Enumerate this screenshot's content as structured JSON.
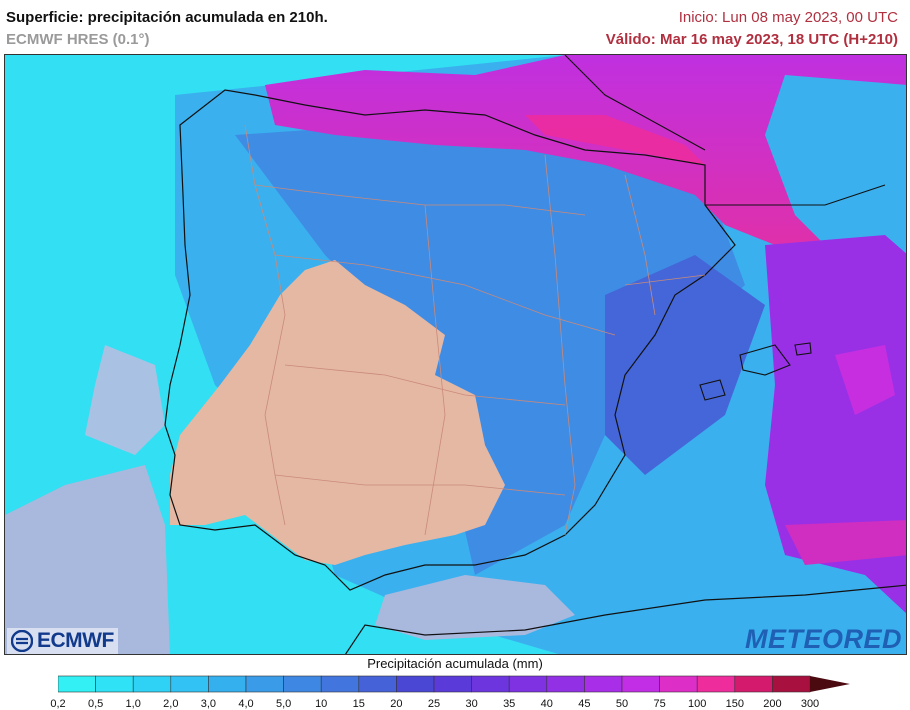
{
  "title": {
    "main": "Superficie: precipitación acumulada en 210h.",
    "sub": "ECMWF HRES (0.1°)",
    "init": "Inicio: Lun 08 may 2023, 00 UTC",
    "valid": "Válido: Mar 16 may 2023, 18 UTC (H+210)"
  },
  "logos": {
    "left": "ECMWF",
    "right": "METEORED"
  },
  "legend": {
    "title": "Precipitación acumulada (mm)",
    "ticks": [
      "0,2",
      "0,5",
      "1,0",
      "2,0",
      "3,0",
      "4,0",
      "5,0",
      "10",
      "15",
      "20",
      "25",
      "30",
      "35",
      "40",
      "45",
      "50",
      "75",
      "100",
      "150",
      "200",
      "300"
    ],
    "colors": [
      "#33f0f5",
      "#30e2f5",
      "#2fd2f5",
      "#32c2f3",
      "#35b0ef",
      "#3a9ce9",
      "#3e88e3",
      "#4275de",
      "#4562d8",
      "#4a47d5",
      "#5a3ad9",
      "#6c35de",
      "#7e32e2",
      "#9230e6",
      "#a82ee8",
      "#c22ee6",
      "#dd2ec8",
      "#ee2c9c",
      "#d41a6c",
      "#a81040",
      "#7e0a1c"
    ],
    "arrow_color": "#4a0a10"
  },
  "map": {
    "sea_color": "#a9b8dd",
    "dry_land_color": "#e5b8a4",
    "coast_color": "#111111",
    "border_color": "#c98a7a"
  }
}
